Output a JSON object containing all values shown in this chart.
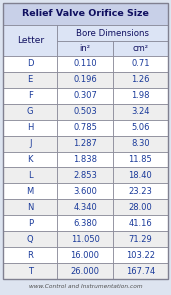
{
  "title": "Relief Valve Orifice Size",
  "rows": [
    [
      "D",
      "0.110",
      "0.71"
    ],
    [
      "E",
      "0.196",
      "1.26"
    ],
    [
      "F",
      "0.307",
      "1.98"
    ],
    [
      "G",
      "0.503",
      "3.24"
    ],
    [
      "H",
      "0.785",
      "5.06"
    ],
    [
      "J",
      "1.287",
      "8.30"
    ],
    [
      "K",
      "1.838",
      "11.85"
    ],
    [
      "L",
      "2.853",
      "18.40"
    ],
    [
      "M",
      "3.600",
      "23.23"
    ],
    [
      "N",
      "4.340",
      "28.00"
    ],
    [
      "P",
      "6.380",
      "41.16"
    ],
    [
      "Q",
      "11.050",
      "71.29"
    ],
    [
      "R",
      "16.000",
      "103.22"
    ],
    [
      "T",
      "26.000",
      "167.74"
    ]
  ],
  "footer": "www.Control and Instrumentation.com",
  "header_bg": "#c8d0e8",
  "subheader_bg": "#dce4f5",
  "row_bg_odd": "#ffffff",
  "row_bg_even": "#eeeeee",
  "border_color": "#808090",
  "text_color": "#1a3a9a",
  "header_text_color": "#101060",
  "footer_color": "#505050",
  "outer_bg": "#dde4f0"
}
